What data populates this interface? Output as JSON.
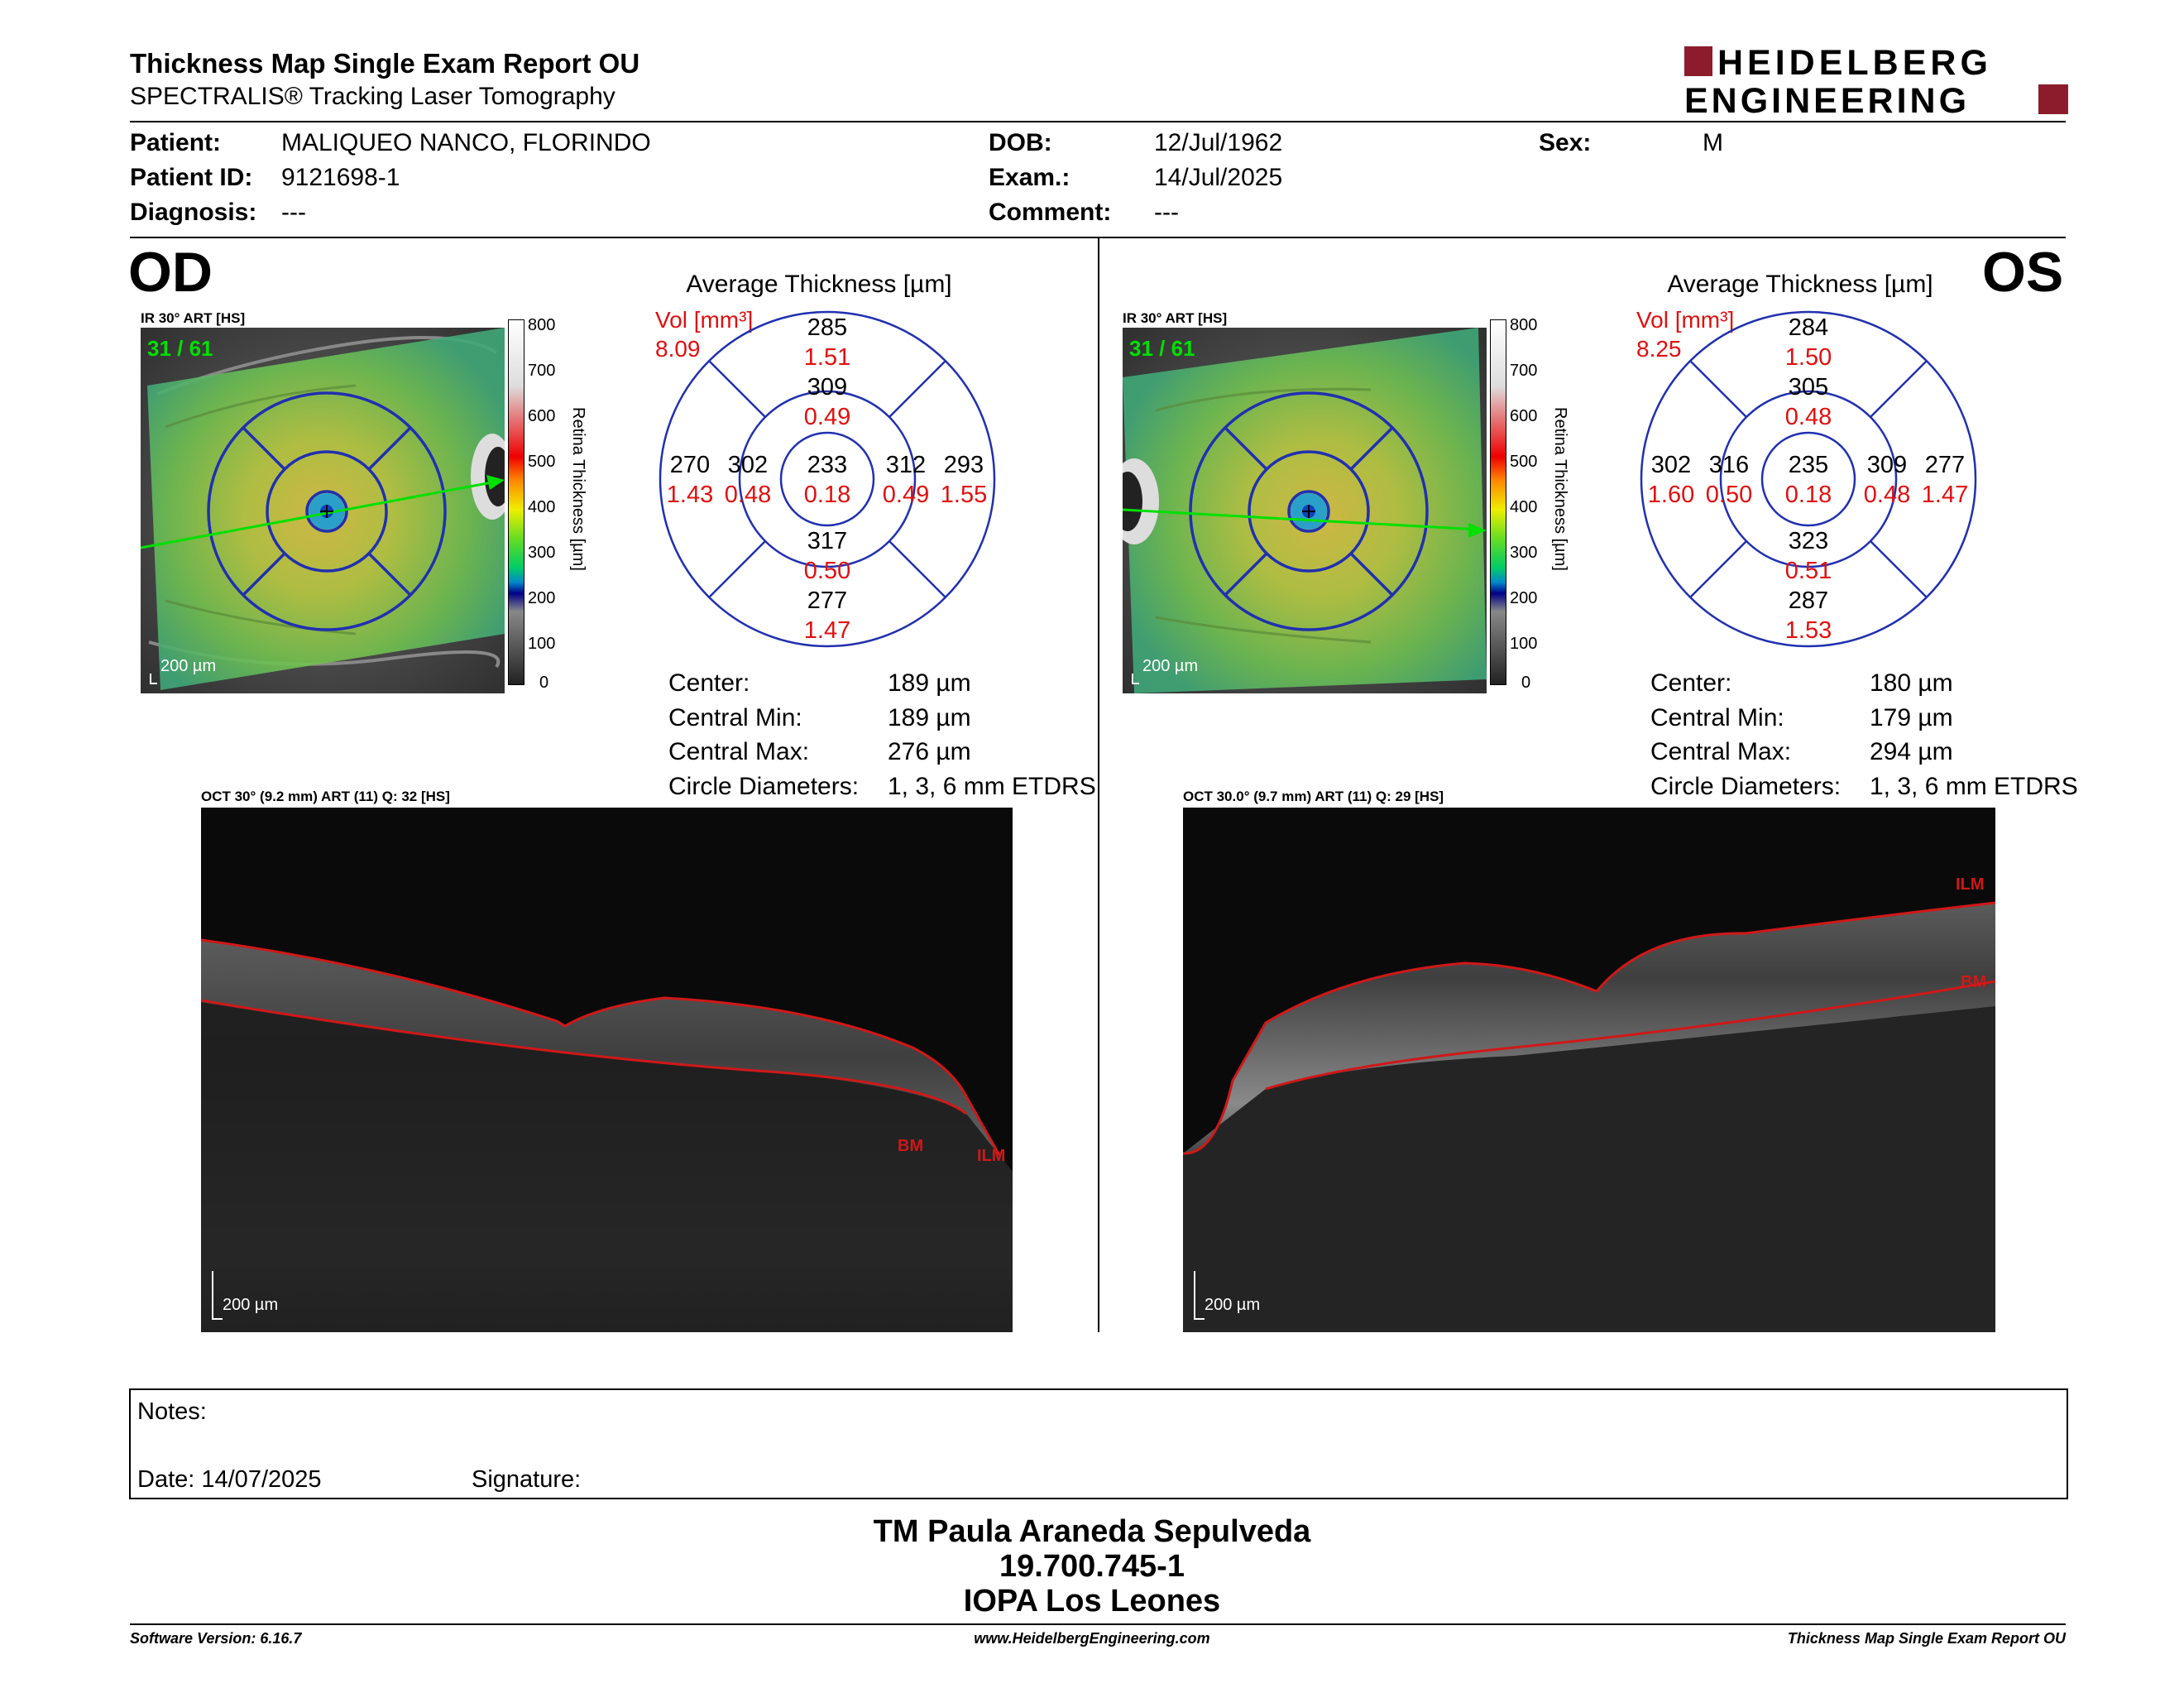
{
  "header": {
    "title": "Thickness Map Single Exam Report OU",
    "subtitle": "SPECTRALIS® Tracking Laser Tomography",
    "brand_line1": "HEIDELBERG",
    "brand_line2": "ENGINEERING"
  },
  "patient": {
    "patient_label": "Patient:",
    "patient_value": "MALIQUEO NANCO, FLORINDO",
    "id_label": "Patient ID:",
    "id_value": "9121698-1",
    "diagnosis_label": "Diagnosis:",
    "diagnosis_value": "---",
    "dob_label": "DOB:",
    "dob_value": "12/Jul/1962",
    "exam_label": "Exam.:",
    "exam_value": "14/Jul/2025",
    "comment_label": "Comment:",
    "comment_value": "---",
    "sex_label": "Sex:",
    "sex_value": "M"
  },
  "colorbar": {
    "ticks": [
      "800",
      "700",
      "600",
      "500",
      "400",
      "300",
      "200",
      "100",
      "0"
    ],
    "label": "Retina Thickness [µm]"
  },
  "od": {
    "eye": "OD",
    "ir_label": "IR 30° ART [HS]",
    "frame": "31 / 61",
    "scale": "200 µm",
    "avg_title": "Average Thickness [µm]",
    "vol_label": "Vol [mm³]",
    "vol_total": "8.09",
    "sectors": {
      "outer_top": [
        "285",
        "1.51"
      ],
      "inner_top": [
        "309",
        "0.49"
      ],
      "outer_left": [
        "270",
        "1.43"
      ],
      "inner_left": [
        "302",
        "0.48"
      ],
      "center": [
        "233",
        "0.18"
      ],
      "inner_right": [
        "312",
        "0.49"
      ],
      "outer_right": [
        "293",
        "1.55"
      ],
      "inner_bottom": [
        "317",
        "0.50"
      ],
      "outer_bottom": [
        "277",
        "1.47"
      ]
    },
    "stats": [
      {
        "label": "Center:",
        "value": "189 µm"
      },
      {
        "label": "Central Min:",
        "value": "189 µm"
      },
      {
        "label": "Central Max:",
        "value": "276 µm"
      },
      {
        "label": "Circle Diameters:",
        "value": "1, 3, 6 mm ETDRS"
      }
    ],
    "oct_label": "OCT 30° (9.2 mm) ART (11) Q: 32 [HS]",
    "oct_scale": "200 µm",
    "ilm": "ILM",
    "bm": "BM"
  },
  "os": {
    "eye": "OS",
    "ir_label": "IR 30° ART [HS]",
    "frame": "31 / 61",
    "scale": "200 µm",
    "avg_title": "Average Thickness [µm]",
    "vol_label": "Vol [mm³]",
    "vol_total": "8.25",
    "sectors": {
      "outer_top": [
        "284",
        "1.50"
      ],
      "inner_top": [
        "305",
        "0.48"
      ],
      "outer_left": [
        "302",
        "1.60"
      ],
      "inner_left": [
        "316",
        "0.50"
      ],
      "center": [
        "235",
        "0.18"
      ],
      "inner_right": [
        "309",
        "0.48"
      ],
      "outer_right": [
        "277",
        "1.47"
      ],
      "inner_bottom": [
        "323",
        "0.51"
      ],
      "outer_bottom": [
        "287",
        "1.53"
      ]
    },
    "stats": [
      {
        "label": "Center:",
        "value": "180 µm"
      },
      {
        "label": "Central Min:",
        "value": "179 µm"
      },
      {
        "label": "Central Max:",
        "value": "294 µm"
      },
      {
        "label": "Circle Diameters:",
        "value": "1, 3, 6 mm ETDRS"
      }
    ],
    "oct_label": "OCT 30.0° (9.7 mm) ART (11) Q: 29 [HS]",
    "oct_scale": "200 µm",
    "ilm": "ILM",
    "bm": "BM"
  },
  "notes": {
    "notes_label": "Notes:",
    "date_label": "Date: 14/07/2025",
    "signature_label": "Signature:"
  },
  "signature_block": {
    "line1": "TM Paula Araneda Sepulveda",
    "line2": "19.700.745-1",
    "line3": "IOPA Los Leones"
  },
  "footer": {
    "left": "Software Version: 6.16.7",
    "center": "www.HeidelbergEngineering.com",
    "right": "Thickness Map Single Exam Report OU"
  },
  "colors": {
    "accent_red": "#e01010",
    "brand_red": "#8c1c2c",
    "circle_blue": "#2030b0",
    "scan_green": "#00e000"
  }
}
